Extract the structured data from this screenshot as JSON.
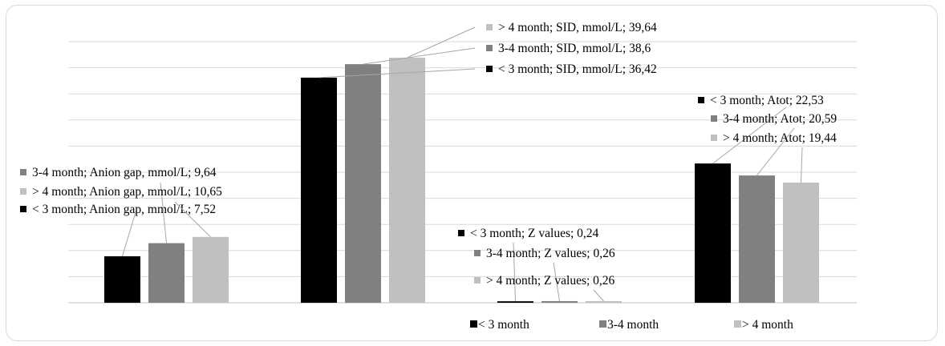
{
  "chart_data": {
    "type": "bar",
    "title": "",
    "xlabel": "",
    "ylabel": "",
    "ylim": [
      0,
      46
    ],
    "grid": true,
    "legend_position": "bottom",
    "categories": [
      "Anion gap, mmol/L",
      "SID, mmol/L",
      "Z values",
      "Atot"
    ],
    "series": [
      {
        "name": "< 3 month",
        "color": "#000000",
        "values": [
          7.52,
          36.42,
          0.24,
          22.53
        ]
      },
      {
        "name": "3-4 month",
        "color": "#808080",
        "values": [
          9.64,
          38.6,
          0.26,
          20.59
        ]
      },
      {
        "name": "> 4 month",
        "color": "#c0c0c0",
        "values": [
          10.65,
          39.64,
          0.26,
          19.44
        ]
      }
    ],
    "data_labels": [
      [
        "< 3 month; Anion gap, mmol/L; 7,52",
        "< 3 month; SID, mmol/L; 36,42",
        "< 3 month; Z values; 0,24",
        "< 3 month; Atot; 22,53"
      ],
      [
        "3-4 month; Anion gap, mmol/L; 9,64",
        "3-4 month; SID, mmol/L; 38,6",
        "3-4 month; Z values; 0,26",
        "3-4 month; Atot; 20,59"
      ],
      [
        "> 4 month; Anion gap, mmol/L; 10,65",
        "> 4 month; SID, mmol/L; 39,64",
        "> 4 month; Z values; 0,26",
        "> 4 month; Atot; 19,44"
      ]
    ]
  }
}
